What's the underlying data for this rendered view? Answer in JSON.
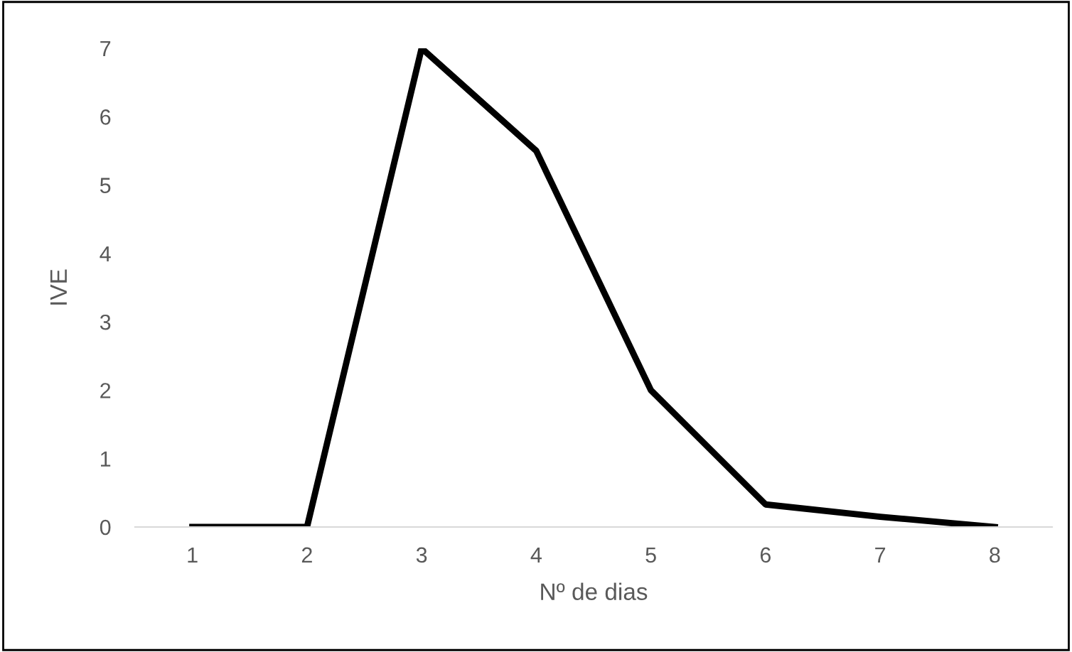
{
  "chart_data": {
    "type": "line",
    "xlabel": "Nº de dias",
    "ylabel": "IVE",
    "categories": [
      "1",
      "2",
      "3",
      "4",
      "5",
      "6",
      "7",
      "8"
    ],
    "series": [
      {
        "color": "#000000",
        "values": [
          0,
          0,
          7,
          5.5,
          2,
          0.33,
          0.15,
          0
        ]
      }
    ],
    "ylim": [
      0,
      7
    ],
    "yticks": [
      0,
      1,
      2,
      3,
      4,
      5,
      6,
      7
    ],
    "grid": false,
    "marker": "none",
    "line_style": "solid"
  }
}
